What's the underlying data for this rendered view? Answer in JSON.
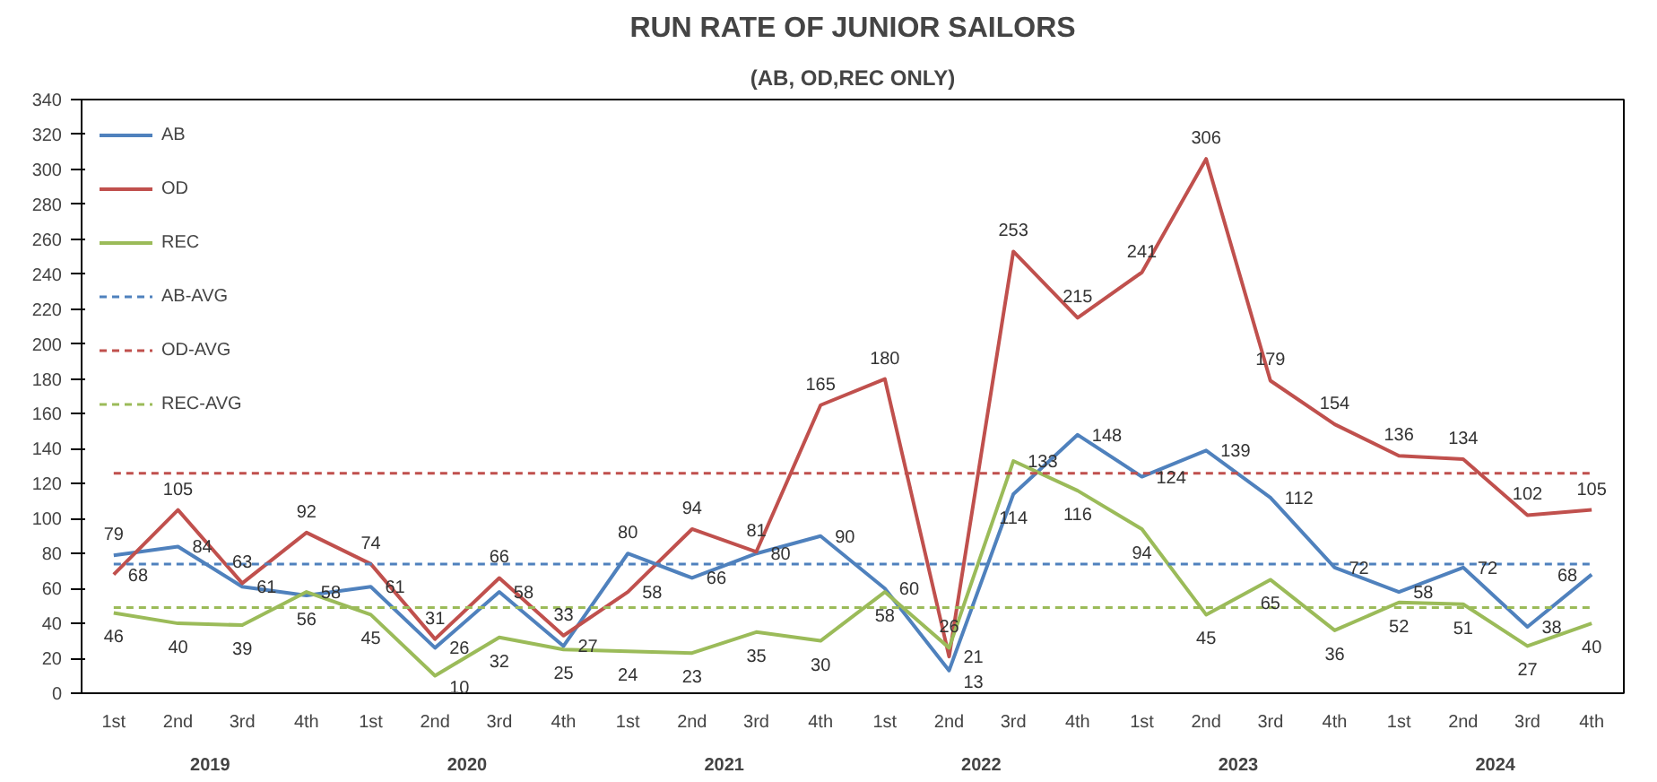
{
  "chart_data": {
    "type": "line",
    "title": "RUN RATE OF JUNIOR SAILORS",
    "subtitle": "(AB, OD,REC ONLY)",
    "categories": [
      "1st",
      "2nd",
      "3rd",
      "4th",
      "1st",
      "2nd",
      "3rd",
      "4th",
      "1st",
      "2nd",
      "3rd",
      "4th",
      "1st",
      "2nd",
      "3rd",
      "4th",
      "1st",
      "2nd",
      "3rd",
      "4th",
      "1st",
      "2nd",
      "3rd",
      "4th"
    ],
    "annotations": [
      "2019",
      "2020",
      "2021",
      "2022",
      "2023",
      "2024"
    ],
    "ylim": [
      0,
      340
    ],
    "yticks": [
      0,
      20,
      40,
      60,
      80,
      100,
      120,
      140,
      160,
      180,
      200,
      220,
      240,
      260,
      280,
      300,
      320,
      340
    ],
    "grid": false,
    "legend": "top left",
    "marker": "none",
    "series": [
      {
        "name": "AB",
        "color": "#4f81bd",
        "line_style": "solid",
        "values": [
          79,
          84,
          61,
          56,
          61,
          26,
          58,
          27,
          80,
          66,
          80,
          90,
          60,
          13,
          114,
          148,
          124,
          139,
          112,
          72,
          58,
          72,
          38,
          68
        ],
        "value_labels": [
          "79",
          "84",
          "61",
          "56",
          "61",
          "26",
          "58",
          "27",
          "80",
          "66",
          "80",
          "90",
          "60",
          "13",
          "114",
          "148",
          "124",
          "139",
          "112",
          "72",
          "58",
          "72",
          "38",
          "68"
        ]
      },
      {
        "name": "OD",
        "color": "#c0504d",
        "line_style": "solid",
        "values": [
          68,
          105,
          63,
          92,
          74,
          31,
          66,
          33,
          58,
          94,
          81,
          165,
          180,
          21,
          253,
          215,
          241,
          306,
          179,
          154,
          136,
          134,
          102,
          105
        ],
        "value_labels": [
          "68",
          "105",
          "63",
          "92",
          "74",
          "31",
          "66",
          "33",
          "58",
          "94",
          "81",
          "165",
          "180",
          "21",
          "253",
          "215",
          "241",
          "306",
          "179",
          "154",
          "136",
          "134",
          "102",
          "105"
        ]
      },
      {
        "name": "REC",
        "color": "#9bbb59",
        "line_style": "solid",
        "values": [
          46,
          40,
          39,
          58,
          45,
          10,
          32,
          25,
          24,
          23,
          35,
          30,
          58,
          26,
          133,
          116,
          94,
          45,
          65,
          36,
          52,
          51,
          27,
          40
        ],
        "value_labels": [
          "46",
          "40",
          "39",
          "58",
          "45",
          "10",
          "32",
          "25",
          "24",
          "23",
          "35",
          "30",
          "58",
          "26",
          "133",
          "116",
          "94",
          "45",
          "65",
          "36",
          "52",
          "51",
          "27",
          "40"
        ]
      },
      {
        "name": "AB-AVG",
        "color": "#4f81bd",
        "line_style": "dashed",
        "values": [
          74,
          74,
          74,
          74,
          74,
          74,
          74,
          74,
          74,
          74,
          74,
          74,
          74,
          74,
          74,
          74,
          74,
          74,
          74,
          74,
          74,
          74,
          74,
          74
        ]
      },
      {
        "name": "OD-AVG",
        "color": "#c0504d",
        "line_style": "dashed",
        "values": [
          126,
          126,
          126,
          126,
          126,
          126,
          126,
          126,
          126,
          126,
          126,
          126,
          126,
          126,
          126,
          126,
          126,
          126,
          126,
          126,
          126,
          126,
          126,
          126
        ]
      },
      {
        "name": "REC-AVG",
        "color": "#9bbb59",
        "line_style": "dashed",
        "values": [
          49,
          49,
          49,
          49,
          49,
          49,
          49,
          49,
          49,
          49,
          49,
          49,
          49,
          49,
          49,
          49,
          49,
          49,
          49,
          49,
          49,
          49,
          49,
          49
        ]
      }
    ]
  }
}
